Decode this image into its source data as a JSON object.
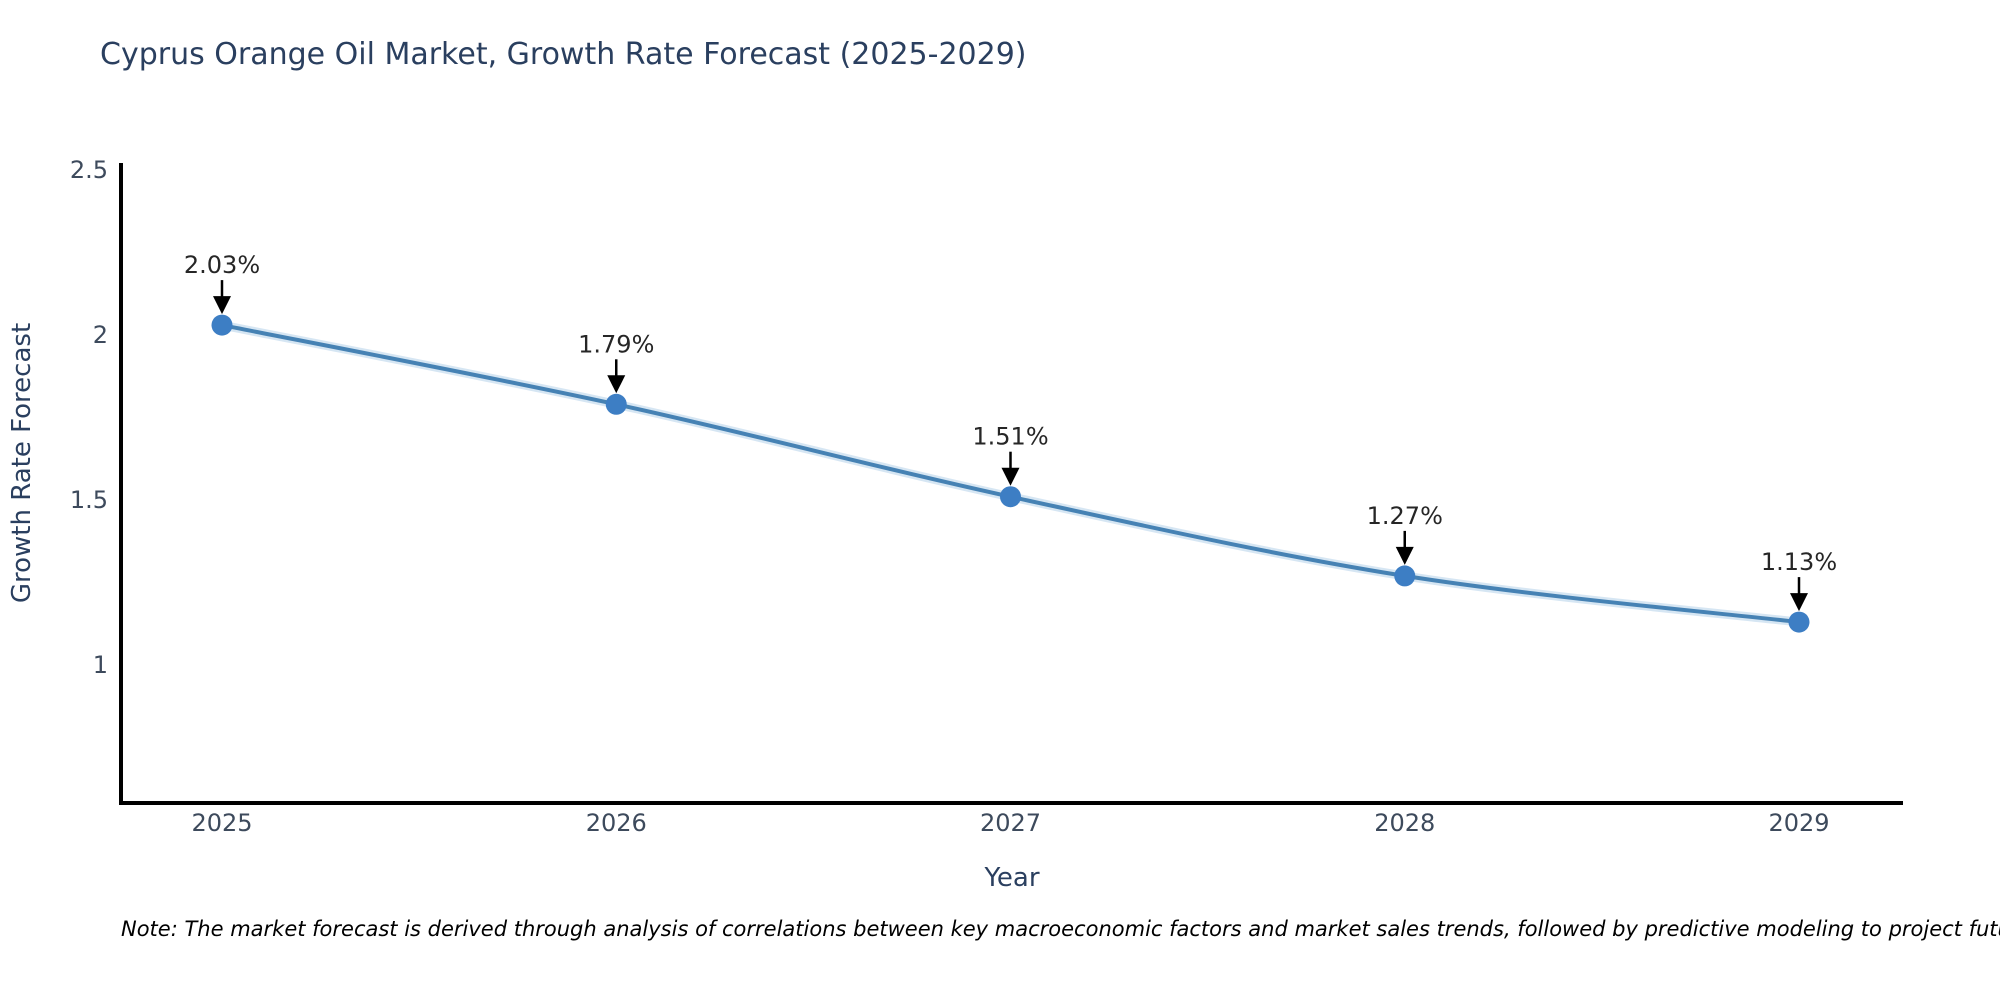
{
  "title": "Cyprus Orange Oil Market, Growth Rate Forecast (2025-2029)",
  "note": "Note: The market forecast is derived through analysis of correlations between key macroeconomic factors and market sales trends, followed by predictive modeling to project future sales",
  "colors": {
    "background": "#ffffff",
    "title": "#2a3f5f",
    "axis_line": "#000000",
    "tick_label": "#3d4a5c",
    "axis_title": "#2a3f5f",
    "line": "#4682b4",
    "line_halo": "#b5d2ea",
    "marker": "#3d7ec4",
    "annotation_text": "#262626",
    "annotation_arrow": "#000000",
    "note": "#000000"
  },
  "chart_data": {
    "type": "line",
    "title": "Cyprus Orange Oil Market, Growth Rate Forecast (2025-2029)",
    "categories": [
      "2025",
      "2026",
      "2027",
      "2028",
      "2029"
    ],
    "x": [
      2025,
      2026,
      2027,
      2028,
      2029
    ],
    "values": [
      2.03,
      1.79,
      1.51,
      1.27,
      1.13
    ],
    "point_labels": [
      "2.03%",
      "1.79%",
      "1.51%",
      "1.27%",
      "1.13%"
    ],
    "xlabel": "Year",
    "ylabel": "Growth Rate Forecast",
    "yticks": [
      2.5,
      2,
      1.5,
      1
    ],
    "ytick_labels": [
      "2.5",
      "2",
      "1.5",
      "1"
    ],
    "ylim": [
      0.56,
      2.5
    ],
    "grid": false,
    "legend": false,
    "annotation_style": "value label with downward arrow onto each marker"
  }
}
